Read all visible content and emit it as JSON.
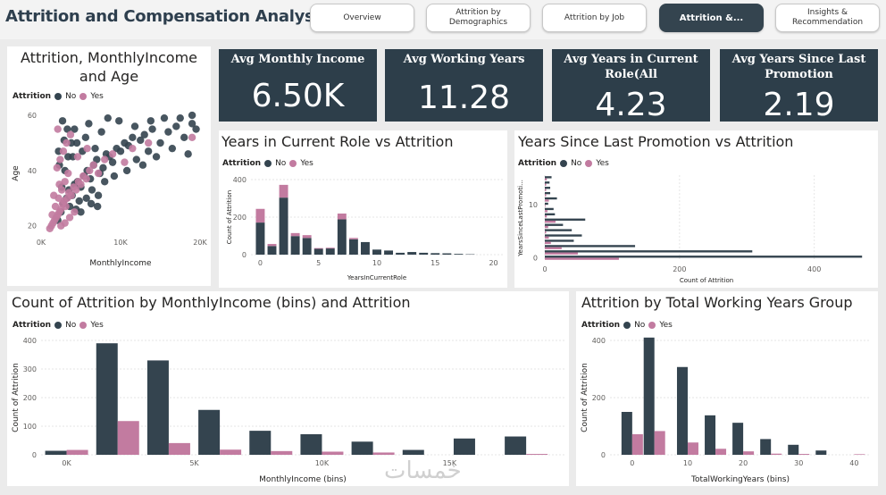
{
  "header": {
    "title": "Attrition and Compensation Analysis"
  },
  "nav": [
    {
      "label": "Overview",
      "active": false
    },
    {
      "label": "Attrition by Demographics",
      "active": false
    },
    {
      "label": "Attrition by Job",
      "active": false
    },
    {
      "label": "Attrition &...",
      "active": true
    },
    {
      "label": "Insights & Recommendation",
      "active": false
    }
  ],
  "colors": {
    "no": "#34444f",
    "yes": "#c27ba0",
    "kpi": "#2d3e4a"
  },
  "kpis": [
    {
      "label": "Avg Monthly Income",
      "value": "6.50K"
    },
    {
      "label": "Avg Working Years",
      "value": "11.28"
    },
    {
      "label": "Avg Years in Current Role(All",
      "value": "4.23"
    },
    {
      "label": "Avg Years Since Last Promotion",
      "value": "2.19"
    }
  ],
  "legend": {
    "title": "Attrition",
    "no": "No",
    "yes": "Yes"
  },
  "watermark": "خمسات",
  "chart_data": [
    {
      "id": "scatter",
      "type": "scatter",
      "title": "Attrition, MonthlyIncome and Age",
      "xlabel": "MonthlyIncome",
      "ylabel": "Age",
      "xlim": [
        0,
        20000
      ],
      "ylim": [
        17,
        61
      ],
      "xticks": [
        {
          "v": 0,
          "t": "0K"
        },
        {
          "v": 10000,
          "t": "10K"
        },
        {
          "v": 20000,
          "t": "20K"
        }
      ],
      "yticks": [
        {
          "v": 20,
          "t": "20"
        },
        {
          "v": 40,
          "t": "40"
        },
        {
          "v": 60,
          "t": "60"
        }
      ],
      "series": [
        {
          "name": "No",
          "points": [
            [
              2100,
              22
            ],
            [
              2500,
              25
            ],
            [
              2800,
              28
            ],
            [
              3200,
              30
            ],
            [
              3500,
              33
            ],
            [
              3900,
              31
            ],
            [
              4200,
              35
            ],
            [
              4600,
              36
            ],
            [
              5000,
              34
            ],
            [
              5400,
              38
            ],
            [
              5800,
              40
            ],
            [
              6200,
              37
            ],
            [
              6600,
              42
            ],
            [
              7000,
              44
            ],
            [
              7400,
              39
            ],
            [
              7800,
              41
            ],
            [
              8200,
              46
            ],
            [
              8600,
              45
            ],
            [
              9000,
              43
            ],
            [
              9500,
              48
            ],
            [
              10000,
              47
            ],
            [
              10500,
              50
            ],
            [
              11000,
              49
            ],
            [
              11500,
              52
            ],
            [
              12000,
              44
            ],
            [
              12500,
              51
            ],
            [
              13000,
              53
            ],
            [
              13500,
              47
            ],
            [
              14000,
              55
            ],
            [
              15000,
              50
            ],
            [
              16000,
              54
            ],
            [
              17000,
              56
            ],
            [
              18000,
              52
            ],
            [
              19000,
              57
            ],
            [
              19500,
              55
            ],
            [
              2600,
              34
            ],
            [
              3000,
              40
            ],
            [
              3400,
              45
            ],
            [
              3800,
              50
            ],
            [
              4200,
              55
            ],
            [
              4800,
              29
            ],
            [
              5200,
              47
            ],
            [
              5600,
              52
            ],
            [
              6000,
              57
            ],
            [
              6400,
              33
            ],
            [
              6800,
              48
            ],
            [
              7200,
              31
            ],
            [
              7600,
              54
            ],
            [
              8000,
              36
            ],
            [
              8400,
              59
            ],
            [
              9200,
              38
            ],
            [
              9800,
              58
            ],
            [
              10800,
              40
            ],
            [
              11800,
              56
            ],
            [
              12800,
              42
            ],
            [
              13800,
              58
            ],
            [
              14500,
              45
            ],
            [
              15500,
              59
            ],
            [
              16500,
              48
            ],
            [
              17500,
              59
            ],
            [
              18500,
              46
            ],
            [
              19000,
              60
            ],
            [
              2300,
              42
            ],
            [
              2900,
              51
            ],
            [
              3600,
              27
            ],
            [
              4400,
              26
            ],
            [
              5000,
              25
            ],
            [
              5700,
              30
            ],
            [
              6300,
              28
            ],
            [
              7100,
              27
            ],
            [
              4000,
              45
            ],
            [
              4500,
              50
            ],
            [
              3300,
              55
            ],
            [
              2700,
              58
            ],
            [
              2200,
              47
            ]
          ]
        },
        {
          "name": "Yes",
          "points": [
            [
              1100,
              19
            ],
            [
              1300,
              20
            ],
            [
              1500,
              21
            ],
            [
              1700,
              22
            ],
            [
              1900,
              23
            ],
            [
              2100,
              24
            ],
            [
              2300,
              25
            ],
            [
              2500,
              26
            ],
            [
              2700,
              28
            ],
            [
              2900,
              29
            ],
            [
              3100,
              27
            ],
            [
              3300,
              30
            ],
            [
              3500,
              32
            ],
            [
              3800,
              31
            ],
            [
              4100,
              34
            ],
            [
              4400,
              33
            ],
            [
              4700,
              36
            ],
            [
              5000,
              35
            ],
            [
              5300,
              38
            ],
            [
              5700,
              37
            ],
            [
              6100,
              40
            ],
            [
              6600,
              42
            ],
            [
              7200,
              39
            ],
            [
              8000,
              44
            ],
            [
              9000,
              46
            ],
            [
              10500,
              43
            ],
            [
              11500,
              48
            ],
            [
              13500,
              50
            ],
            [
              19000,
              52
            ],
            [
              1400,
              24
            ],
            [
              1800,
              27
            ],
            [
              2200,
              30
            ],
            [
              2600,
              33
            ],
            [
              3000,
              36
            ],
            [
              3400,
              39
            ],
            [
              2000,
              41
            ],
            [
              2400,
              44
            ],
            [
              2800,
              47
            ],
            [
              3200,
              50
            ],
            [
              1600,
              31
            ],
            [
              2300,
              35
            ],
            [
              4600,
              45
            ],
            [
              5800,
              48
            ],
            [
              2100,
              55
            ],
            [
              3700,
              53
            ],
            [
              2500,
              20
            ],
            [
              3000,
              21
            ],
            [
              3600,
              23
            ],
            [
              4200,
              25
            ]
          ]
        }
      ]
    },
    {
      "id": "yearsRole",
      "type": "bar",
      "stacked": true,
      "title": "Years in Current Role vs Attrition",
      "xlabel": "YearsInCurrentRole",
      "ylabel": "Count of Attrition",
      "xlim": [
        -0.8,
        20.8
      ],
      "ylim": [
        0,
        400
      ],
      "xticks": [
        0,
        5,
        10,
        15,
        20
      ],
      "yticks": [
        0,
        200,
        400
      ],
      "x": [
        0,
        1,
        2,
        3,
        4,
        5,
        6,
        7,
        8,
        9,
        10,
        11,
        12,
        13,
        14,
        15,
        16,
        17,
        18
      ],
      "series": [
        {
          "name": "No",
          "values": [
            171,
            46,
            304,
            99,
            89,
            31,
            33,
            188,
            82,
            67,
            27,
            22,
            10,
            14,
            10,
            8,
            7,
            4,
            2
          ]
        },
        {
          "name": "Yes",
          "values": [
            73,
            11,
            68,
            16,
            15,
            4,
            4,
            31,
            7,
            0,
            0,
            0,
            0,
            0,
            0,
            0,
            0,
            0,
            0
          ]
        }
      ]
    },
    {
      "id": "promotion",
      "type": "bar",
      "orientation": "horizontal",
      "title": "Years Since Last Promotion vs Attrition",
      "xlabel": "Count of Attrition",
      "ylabel": "YearsSinceLastPromoti...",
      "xlim": [
        0,
        480
      ],
      "ylim": [
        -0.6,
        15.6
      ],
      "xticks": [
        0,
        200,
        400
      ],
      "yticks": [
        0,
        10
      ],
      "y": [
        0,
        1,
        2,
        3,
        4,
        5,
        6,
        7,
        8,
        9,
        10,
        11,
        12,
        13,
        14,
        15
      ],
      "series": [
        {
          "name": "No",
          "values": [
            471,
            308,
            134,
            43,
            55,
            40,
            27,
            60,
            15,
            13,
            5,
            18,
            8,
            8,
            7,
            10
          ]
        },
        {
          "name": "Yes",
          "values": [
            110,
            49,
            25,
            9,
            6,
            2,
            5,
            16,
            3,
            4,
            1,
            6,
            2,
            2,
            2,
            3
          ]
        }
      ]
    },
    {
      "id": "income",
      "type": "bar",
      "grouped": true,
      "title": "Count of Attrition by MonthlyIncome (bins) and Attrition",
      "xlabel": "MonthlyIncome (bins)",
      "ylabel": "Count of Attrition",
      "xlim": [
        -1000,
        19500
      ],
      "ylim": [
        0,
        400
      ],
      "xticks": [
        {
          "v": 0,
          "t": "0K"
        },
        {
          "v": 5000,
          "t": "5K"
        },
        {
          "v": 10000,
          "t": "10K"
        },
        {
          "v": 15000,
          "t": "15K"
        }
      ],
      "yticks": [
        0,
        100,
        200,
        300,
        400
      ],
      "x": [
        0,
        2000,
        4000,
        6000,
        8000,
        10000,
        12000,
        14000,
        16000,
        18000
      ],
      "series": [
        {
          "name": "No",
          "values": [
            14,
            390,
            330,
            157,
            84,
            72,
            46,
            17,
            57,
            64
          ]
        },
        {
          "name": "Yes",
          "values": [
            17,
            118,
            41,
            18,
            13,
            11,
            8,
            0,
            0,
            3
          ]
        }
      ]
    },
    {
      "id": "working",
      "type": "bar",
      "grouped": true,
      "title": "Attrition by Total Working Years Group",
      "xlabel": "TotalWorkingYears (bins)",
      "ylabel": "Count of Attrition",
      "xlim": [
        -4,
        43
      ],
      "ylim": [
        0,
        400
      ],
      "xticks": [
        0,
        10,
        20,
        30,
        40
      ],
      "yticks": [
        0,
        200,
        400
      ],
      "x": [
        0,
        4,
        10,
        15,
        20,
        25,
        30,
        35,
        40
      ],
      "series": [
        {
          "name": "No",
          "values": [
            150,
            410,
            307,
            138,
            112,
            55,
            35,
            15,
            0
          ]
        },
        {
          "name": "Yes",
          "values": [
            72,
            83,
            43,
            21,
            12,
            4,
            3,
            0,
            2
          ]
        }
      ]
    }
  ]
}
